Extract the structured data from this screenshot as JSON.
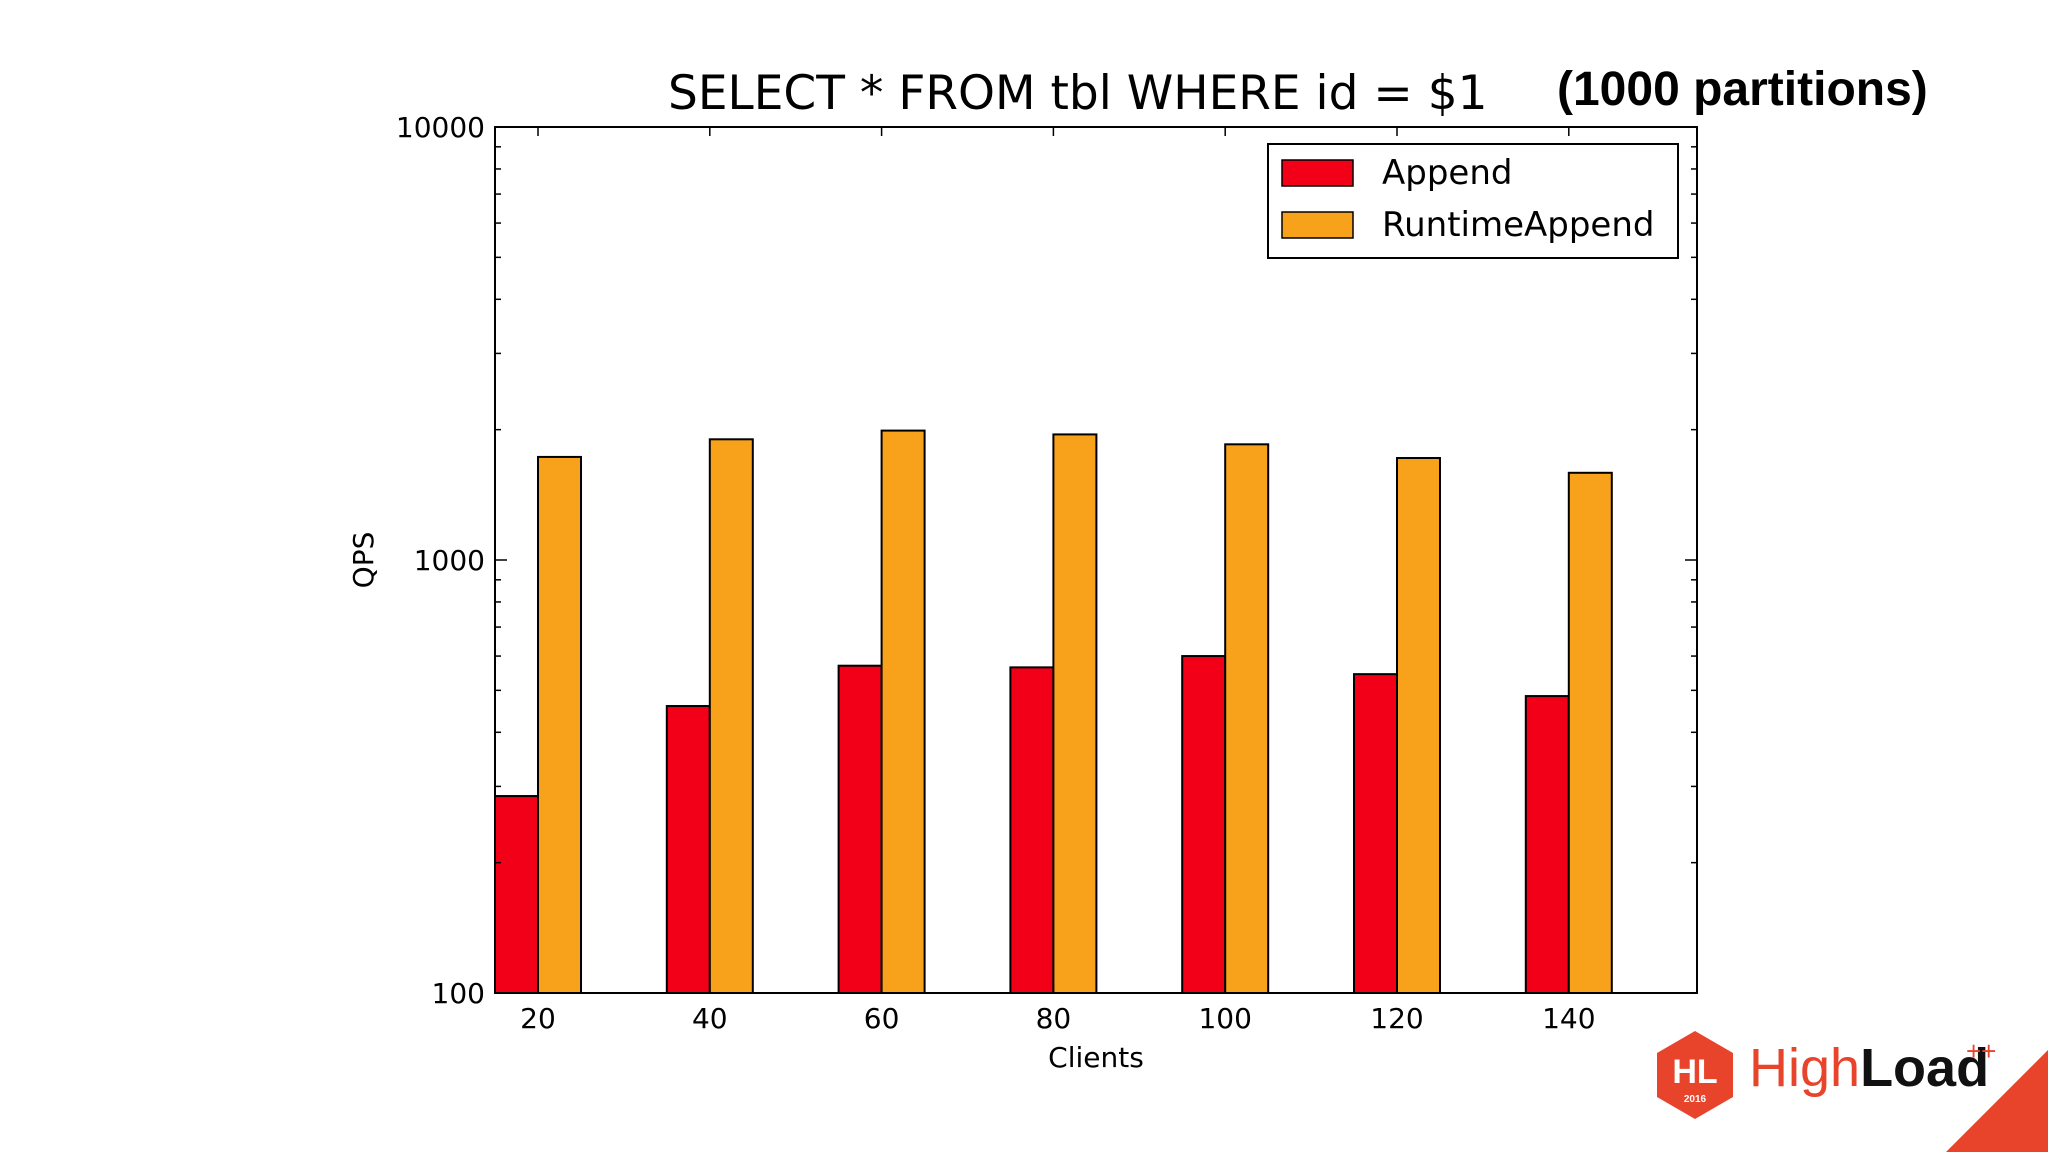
{
  "chart_data": {
    "type": "bar",
    "title": "SELECT * FROM tbl WHERE id = $1",
    "subtitle": "(1000 partitions)",
    "xlabel": "Clients",
    "ylabel": "QPS",
    "yscale": "log",
    "ylim": [
      100,
      10000
    ],
    "yticks": [
      "100",
      "1000",
      "10000"
    ],
    "categories": [
      "20",
      "40",
      "60",
      "80",
      "100",
      "120",
      "140"
    ],
    "series": [
      {
        "name": "Append",
        "color": "#f20017",
        "values": [
          285,
          460,
          570,
          565,
          600,
          545,
          485
        ]
      },
      {
        "name": "RuntimeAppend",
        "color": "#f8a21b",
        "values": [
          1730,
          1900,
          1990,
          1950,
          1850,
          1720,
          1590
        ]
      }
    ],
    "legend": "top-right",
    "grid": false
  },
  "branding": {
    "logo_mark": "HL",
    "logo_year": "2016",
    "logo_high": "High",
    "logo_load": "Load",
    "logo_plus": "++",
    "accent": "#e8442c"
  }
}
